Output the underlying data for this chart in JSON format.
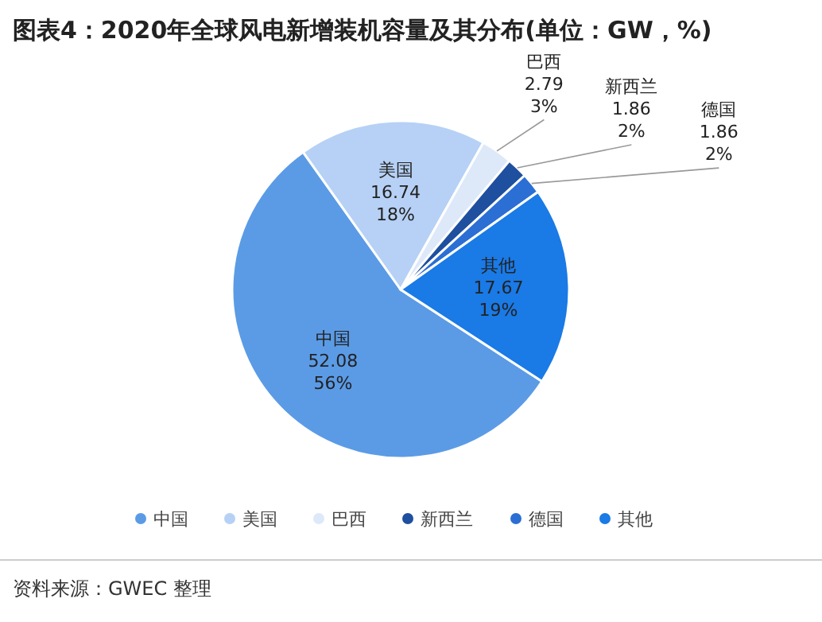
{
  "chart_data": {
    "type": "pie",
    "title": "图表4：2020年全球风电新增装机容量及其分布(单位：GW，%)",
    "categories": [
      "中国",
      "美国",
      "巴西",
      "新西兰",
      "德国",
      "其他"
    ],
    "values": [
      52.08,
      16.74,
      2.79,
      1.86,
      1.86,
      17.67
    ],
    "value_labels": [
      "52.08\n56%",
      "16.74\n18%",
      "2.79\n3%",
      "1.86\n2%",
      "1.86\n2%",
      "17.67\n19%"
    ],
    "colors": [
      "#5b9be6",
      "#b6d1f5",
      "#dde9f9",
      "#1f4f9f",
      "#2b6fd4",
      "#1a7ae6"
    ],
    "legend": "bottom",
    "annotations": [
      "资料来源：GWEC 整理"
    ]
  }
}
